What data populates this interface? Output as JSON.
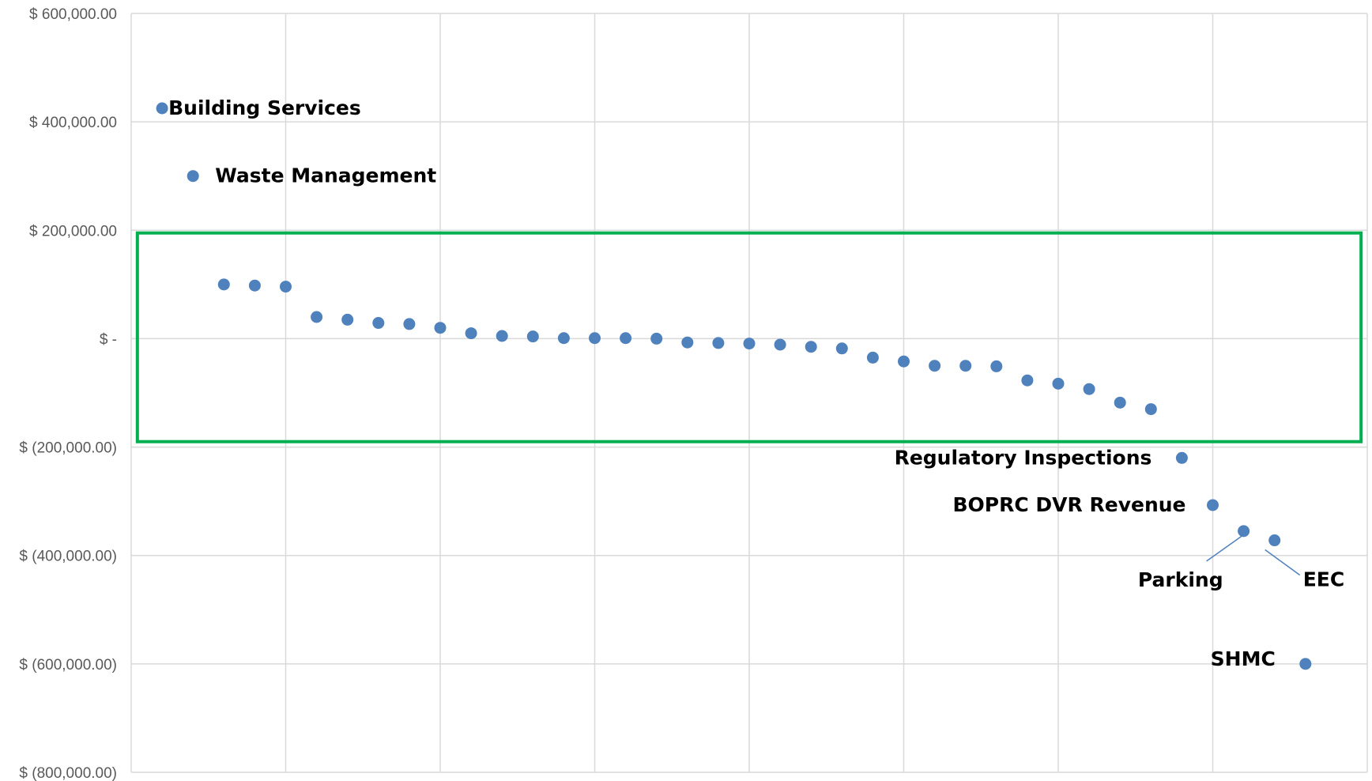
{
  "chart_data": {
    "type": "scatter",
    "title": "",
    "xlabel": "",
    "ylabel": "",
    "xlim": [
      0,
      40
    ],
    "ylim": [
      -800000,
      600000
    ],
    "ytick_values": [
      600000,
      400000,
      200000,
      0,
      -200000,
      -400000,
      -600000,
      -800000
    ],
    "ytick_labels": [
      "$ 600,000.00",
      "$ 400,000.00",
      "$ 200,000.00",
      "$ -",
      "$ (200,000.00)",
      "$ (400,000.00)",
      "$ (600,000.00)",
      "$ (800,000.00)"
    ],
    "xgrid_values": [
      5,
      10,
      15,
      20,
      25,
      30,
      35,
      40
    ],
    "grid": true,
    "legend": "none",
    "marker_color": "#4f81bd",
    "highlight_box": {
      "color": "#00b050",
      "x_range": [
        0.2,
        39.8
      ],
      "y_range": [
        -190000,
        195000
      ]
    },
    "series": [
      {
        "points": [
          {
            "x": 1,
            "y": 425000,
            "label": "Building Services"
          },
          {
            "x": 2,
            "y": 300000,
            "label": "Waste Management"
          },
          {
            "x": 3,
            "y": 100000
          },
          {
            "x": 4,
            "y": 98000
          },
          {
            "x": 5,
            "y": 96000
          },
          {
            "x": 6,
            "y": 40000
          },
          {
            "x": 7,
            "y": 35000
          },
          {
            "x": 8,
            "y": 29000
          },
          {
            "x": 9,
            "y": 27000
          },
          {
            "x": 10,
            "y": 20000
          },
          {
            "x": 11,
            "y": 10000
          },
          {
            "x": 12,
            "y": 5000
          },
          {
            "x": 13,
            "y": 4000
          },
          {
            "x": 14,
            "y": 1000
          },
          {
            "x": 15,
            "y": 1000
          },
          {
            "x": 16,
            "y": 1000
          },
          {
            "x": 17,
            "y": 0
          },
          {
            "x": 18,
            "y": -7000
          },
          {
            "x": 19,
            "y": -8000
          },
          {
            "x": 20,
            "y": -9000
          },
          {
            "x": 21,
            "y": -11000
          },
          {
            "x": 22,
            "y": -15000
          },
          {
            "x": 23,
            "y": -18000
          },
          {
            "x": 24,
            "y": -35000
          },
          {
            "x": 25,
            "y": -42000
          },
          {
            "x": 26,
            "y": -50000
          },
          {
            "x": 27,
            "y": -50000
          },
          {
            "x": 28,
            "y": -51000
          },
          {
            "x": 29,
            "y": -77000
          },
          {
            "x": 30,
            "y": -83000
          },
          {
            "x": 31,
            "y": -93000
          },
          {
            "x": 32,
            "y": -118000
          },
          {
            "x": 33,
            "y": -130000
          },
          {
            "x": 34,
            "y": -220000,
            "label": "Regulatory Inspections"
          },
          {
            "x": 35,
            "y": -307000,
            "label": "BOPRC DVR Revenue"
          },
          {
            "x": 36,
            "y": -355000,
            "label": "Parking"
          },
          {
            "x": 37,
            "y": -372000,
            "label": "EEC"
          },
          {
            "x": 38,
            "y": -600000,
            "label": "SHMC"
          }
        ]
      }
    ]
  }
}
